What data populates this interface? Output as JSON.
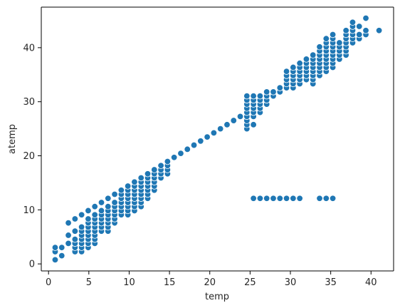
{
  "chart_data": {
    "type": "scatter",
    "title": "",
    "xlabel": "temp",
    "ylabel": "atemp",
    "xlim": [
      -0.9,
      42.8
    ],
    "ylim": [
      -1.3,
      47.5
    ],
    "xticks": [
      0,
      5,
      10,
      15,
      20,
      25,
      30,
      35,
      40
    ],
    "yticks": [
      0,
      10,
      20,
      30,
      40
    ],
    "grid": false,
    "legend": "none",
    "marker_color": "#1f77b4",
    "marker_edge_color": "#ffffff",
    "series": [
      {
        "points": [
          [
            0.82,
            0.76
          ],
          [
            0.82,
            2.27
          ],
          [
            0.82,
            3.03
          ],
          [
            1.64,
            1.52
          ],
          [
            1.64,
            3.03
          ],
          [
            2.46,
            3.79
          ],
          [
            2.46,
            5.3
          ],
          [
            2.46,
            7.58
          ],
          [
            3.28,
            2.27
          ],
          [
            3.28,
            3.03
          ],
          [
            3.28,
            3.79
          ],
          [
            3.28,
            4.55
          ],
          [
            3.28,
            6.06
          ],
          [
            3.28,
            8.33
          ],
          [
            4.1,
            2.27
          ],
          [
            4.1,
            3.03
          ],
          [
            4.1,
            3.79
          ],
          [
            4.1,
            4.55
          ],
          [
            4.1,
            5.3
          ],
          [
            4.1,
            6.06
          ],
          [
            4.1,
            6.82
          ],
          [
            4.1,
            9.09
          ],
          [
            4.92,
            3.03
          ],
          [
            4.92,
            3.79
          ],
          [
            4.92,
            4.55
          ],
          [
            4.92,
            5.3
          ],
          [
            4.92,
            6.06
          ],
          [
            4.92,
            6.82
          ],
          [
            4.92,
            7.58
          ],
          [
            4.92,
            8.33
          ],
          [
            4.92,
            9.85
          ],
          [
            5.74,
            3.79
          ],
          [
            5.74,
            4.55
          ],
          [
            5.74,
            5.3
          ],
          [
            5.74,
            6.06
          ],
          [
            5.74,
            6.82
          ],
          [
            5.74,
            7.58
          ],
          [
            5.74,
            8.33
          ],
          [
            5.74,
            9.09
          ],
          [
            5.74,
            10.61
          ],
          [
            6.56,
            6.06
          ],
          [
            6.56,
            6.82
          ],
          [
            6.56,
            7.58
          ],
          [
            6.56,
            8.33
          ],
          [
            6.56,
            9.09
          ],
          [
            6.56,
            9.85
          ],
          [
            6.56,
            11.36
          ],
          [
            7.38,
            6.06
          ],
          [
            7.38,
            6.82
          ],
          [
            7.38,
            7.58
          ],
          [
            7.38,
            8.33
          ],
          [
            7.38,
            9.09
          ],
          [
            7.38,
            9.85
          ],
          [
            7.38,
            10.61
          ],
          [
            7.38,
            12.12
          ],
          [
            8.2,
            7.58
          ],
          [
            8.2,
            8.33
          ],
          [
            8.2,
            9.09
          ],
          [
            8.2,
            9.85
          ],
          [
            8.2,
            10.61
          ],
          [
            8.2,
            11.36
          ],
          [
            8.2,
            12.88
          ],
          [
            9.02,
            9.09
          ],
          [
            9.02,
            9.85
          ],
          [
            9.02,
            10.61
          ],
          [
            9.02,
            11.36
          ],
          [
            9.02,
            12.12
          ],
          [
            9.02,
            12.88
          ],
          [
            9.02,
            13.64
          ],
          [
            9.84,
            9.09
          ],
          [
            9.84,
            9.85
          ],
          [
            9.84,
            10.61
          ],
          [
            9.84,
            11.36
          ],
          [
            9.84,
            12.12
          ],
          [
            9.84,
            12.88
          ],
          [
            9.84,
            13.64
          ],
          [
            9.84,
            14.39
          ],
          [
            10.66,
            9.85
          ],
          [
            10.66,
            10.61
          ],
          [
            10.66,
            11.36
          ],
          [
            10.66,
            12.12
          ],
          [
            10.66,
            12.88
          ],
          [
            10.66,
            13.64
          ],
          [
            10.66,
            14.39
          ],
          [
            10.66,
            15.15
          ],
          [
            11.48,
            10.61
          ],
          [
            11.48,
            11.36
          ],
          [
            11.48,
            12.12
          ],
          [
            11.48,
            12.88
          ],
          [
            11.48,
            13.64
          ],
          [
            11.48,
            14.39
          ],
          [
            11.48,
            15.15
          ],
          [
            11.48,
            15.91
          ],
          [
            12.3,
            12.12
          ],
          [
            12.3,
            12.88
          ],
          [
            12.3,
            13.64
          ],
          [
            12.3,
            14.39
          ],
          [
            12.3,
            15.15
          ],
          [
            12.3,
            15.91
          ],
          [
            12.3,
            16.67
          ],
          [
            13.12,
            13.64
          ],
          [
            13.12,
            14.39
          ],
          [
            13.12,
            15.15
          ],
          [
            13.12,
            15.91
          ],
          [
            13.12,
            16.67
          ],
          [
            13.12,
            17.42
          ],
          [
            13.94,
            15.91
          ],
          [
            13.94,
            16.67
          ],
          [
            13.94,
            17.42
          ],
          [
            13.94,
            18.18
          ],
          [
            14.76,
            16.67
          ],
          [
            14.76,
            17.42
          ],
          [
            14.76,
            18.18
          ],
          [
            14.76,
            18.94
          ],
          [
            15.58,
            19.7
          ],
          [
            16.4,
            20.45
          ],
          [
            17.22,
            21.21
          ],
          [
            18.04,
            21.97
          ],
          [
            18.86,
            22.73
          ],
          [
            19.68,
            23.48
          ],
          [
            20.5,
            24.24
          ],
          [
            21.32,
            25.0
          ],
          [
            22.14,
            25.76
          ],
          [
            22.96,
            26.52
          ],
          [
            23.78,
            27.27
          ],
          [
            24.6,
            25.0
          ],
          [
            24.6,
            25.76
          ],
          [
            24.6,
            26.52
          ],
          [
            24.6,
            27.27
          ],
          [
            24.6,
            28.03
          ],
          [
            24.6,
            28.79
          ],
          [
            24.6,
            29.55
          ],
          [
            24.6,
            30.3
          ],
          [
            24.6,
            31.06
          ],
          [
            25.42,
            25.76
          ],
          [
            25.42,
            27.27
          ],
          [
            25.42,
            28.03
          ],
          [
            25.42,
            28.79
          ],
          [
            25.42,
            29.55
          ],
          [
            25.42,
            30.3
          ],
          [
            25.42,
            31.06
          ],
          [
            25.42,
            12.12
          ],
          [
            26.24,
            28.03
          ],
          [
            26.24,
            28.79
          ],
          [
            26.24,
            29.55
          ],
          [
            26.24,
            30.3
          ],
          [
            26.24,
            31.06
          ],
          [
            26.24,
            12.12
          ],
          [
            27.06,
            29.55
          ],
          [
            27.06,
            30.3
          ],
          [
            27.06,
            31.06
          ],
          [
            27.06,
            31.82
          ],
          [
            27.06,
            12.12
          ],
          [
            27.88,
            31.06
          ],
          [
            27.88,
            31.82
          ],
          [
            27.88,
            12.12
          ],
          [
            28.7,
            31.82
          ],
          [
            28.7,
            32.58
          ],
          [
            28.7,
            12.12
          ],
          [
            29.52,
            32.58
          ],
          [
            29.52,
            33.33
          ],
          [
            29.52,
            34.09
          ],
          [
            29.52,
            34.85
          ],
          [
            29.52,
            35.61
          ],
          [
            29.52,
            12.12
          ],
          [
            30.34,
            32.58
          ],
          [
            30.34,
            33.33
          ],
          [
            30.34,
            34.09
          ],
          [
            30.34,
            34.85
          ],
          [
            30.34,
            35.61
          ],
          [
            30.34,
            36.36
          ],
          [
            30.34,
            12.12
          ],
          [
            31.16,
            33.33
          ],
          [
            31.16,
            34.09
          ],
          [
            31.16,
            34.85
          ],
          [
            31.16,
            35.61
          ],
          [
            31.16,
            36.36
          ],
          [
            31.16,
            37.12
          ],
          [
            31.16,
            12.12
          ],
          [
            31.98,
            34.09
          ],
          [
            31.98,
            34.85
          ],
          [
            31.98,
            35.61
          ],
          [
            31.98,
            36.36
          ],
          [
            31.98,
            37.12
          ],
          [
            31.98,
            37.88
          ],
          [
            32.8,
            33.33
          ],
          [
            32.8,
            34.09
          ],
          [
            32.8,
            34.85
          ],
          [
            32.8,
            35.61
          ],
          [
            32.8,
            36.36
          ],
          [
            32.8,
            37.12
          ],
          [
            32.8,
            37.88
          ],
          [
            32.8,
            38.64
          ],
          [
            33.62,
            34.85
          ],
          [
            33.62,
            35.61
          ],
          [
            33.62,
            36.36
          ],
          [
            33.62,
            37.12
          ],
          [
            33.62,
            37.88
          ],
          [
            33.62,
            38.64
          ],
          [
            33.62,
            39.39
          ],
          [
            33.62,
            40.15
          ],
          [
            33.62,
            12.12
          ],
          [
            34.44,
            35.61
          ],
          [
            34.44,
            36.36
          ],
          [
            34.44,
            37.12
          ],
          [
            34.44,
            37.88
          ],
          [
            34.44,
            38.64
          ],
          [
            34.44,
            39.39
          ],
          [
            34.44,
            40.15
          ],
          [
            34.44,
            40.91
          ],
          [
            34.44,
            41.67
          ],
          [
            34.44,
            12.12
          ],
          [
            35.26,
            36.36
          ],
          [
            35.26,
            37.12
          ],
          [
            35.26,
            37.88
          ],
          [
            35.26,
            38.64
          ],
          [
            35.26,
            39.39
          ],
          [
            35.26,
            40.15
          ],
          [
            35.26,
            40.91
          ],
          [
            35.26,
            41.67
          ],
          [
            35.26,
            42.42
          ],
          [
            35.26,
            12.12
          ],
          [
            36.08,
            37.88
          ],
          [
            36.08,
            38.64
          ],
          [
            36.08,
            39.39
          ],
          [
            36.08,
            40.15
          ],
          [
            36.08,
            40.91
          ],
          [
            36.9,
            38.64
          ],
          [
            36.9,
            39.39
          ],
          [
            36.9,
            40.15
          ],
          [
            36.9,
            40.91
          ],
          [
            36.9,
            41.67
          ],
          [
            36.9,
            42.42
          ],
          [
            36.9,
            43.18
          ],
          [
            37.72,
            40.91
          ],
          [
            37.72,
            41.67
          ],
          [
            37.72,
            42.42
          ],
          [
            37.72,
            43.18
          ],
          [
            37.72,
            43.94
          ],
          [
            37.72,
            44.7
          ],
          [
            38.54,
            41.67
          ],
          [
            38.54,
            42.42
          ],
          [
            38.54,
            43.94
          ],
          [
            39.36,
            42.42
          ],
          [
            39.36,
            43.18
          ],
          [
            39.36,
            45.45
          ],
          [
            41.0,
            43.18
          ]
        ]
      }
    ]
  }
}
